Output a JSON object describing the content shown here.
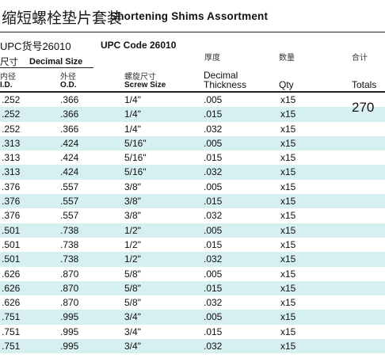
{
  "header": {
    "title_cn": "缩短螺栓垫片套装",
    "title_en": "Shortening Shims Assortment",
    "upc_cn": "UPC货号26010",
    "upc_en": "UPC Code 26010"
  },
  "columns": {
    "size_cn": "尺寸",
    "size_en": "Decimal Size",
    "id_cn": "内径",
    "id_en": "I.D.",
    "od_cn": "外径",
    "od_en": "O.D.",
    "screw_cn": "螺旋尺寸",
    "screw_en": "Screw Size",
    "thickness_cn": "厚度",
    "thickness_en_line1": "Decimal",
    "thickness_en_line2": "Thickness",
    "qty_cn": "数量",
    "qty_en": "Qty",
    "totals_cn": "合计",
    "totals_en": "Totals"
  },
  "total": "270",
  "shade_color": "#d6eff1",
  "rows": [
    {
      "id": ".252",
      "od": ".366",
      "screw": "1/4\"",
      "thickness": ".005",
      "qty": "x15"
    },
    {
      "id": ".252",
      "od": ".366",
      "screw": "1/4\"",
      "thickness": ".015",
      "qty": "x15"
    },
    {
      "id": ".252",
      "od": ".366",
      "screw": "1/4\"",
      "thickness": ".032",
      "qty": "x15"
    },
    {
      "id": ".313",
      "od": ".424",
      "screw": "5/16\"",
      "thickness": ".005",
      "qty": "x15"
    },
    {
      "id": ".313",
      "od": ".424",
      "screw": "5/16\"",
      "thickness": ".015",
      "qty": "x15"
    },
    {
      "id": ".313",
      "od": ".424",
      "screw": "5/16\"",
      "thickness": ".032",
      "qty": "x15"
    },
    {
      "id": ".376",
      "od": ".557",
      "screw": "3/8\"",
      "thickness": ".005",
      "qty": "x15"
    },
    {
      "id": ".376",
      "od": ".557",
      "screw": "3/8\"",
      "thickness": ".015",
      "qty": "x15"
    },
    {
      "id": ".376",
      "od": ".557",
      "screw": "3/8\"",
      "thickness": ".032",
      "qty": "x15"
    },
    {
      "id": ".501",
      "od": ".738",
      "screw": "1/2\"",
      "thickness": ".005",
      "qty": "x15"
    },
    {
      "id": ".501",
      "od": ".738",
      "screw": "1/2\"",
      "thickness": ".015",
      "qty": "x15"
    },
    {
      "id": ".501",
      "od": ".738",
      "screw": "1/2\"",
      "thickness": ".032",
      "qty": "x15"
    },
    {
      "id": ".626",
      "od": ".870",
      "screw": "5/8\"",
      "thickness": ".005",
      "qty": "x15"
    },
    {
      "id": ".626",
      "od": ".870",
      "screw": "5/8\"",
      "thickness": ".015",
      "qty": "x15"
    },
    {
      "id": ".626",
      "od": ".870",
      "screw": "5/8\"",
      "thickness": ".032",
      "qty": "x15"
    },
    {
      "id": ".751",
      "od": ".995",
      "screw": "3/4\"",
      "thickness": ".005",
      "qty": "x15"
    },
    {
      "id": ".751",
      "od": ".995",
      "screw": "3/4\"",
      "thickness": ".015",
      "qty": "x15"
    },
    {
      "id": ".751",
      "od": ".995",
      "screw": "3/4\"",
      "thickness": ".032",
      "qty": "x15"
    }
  ]
}
